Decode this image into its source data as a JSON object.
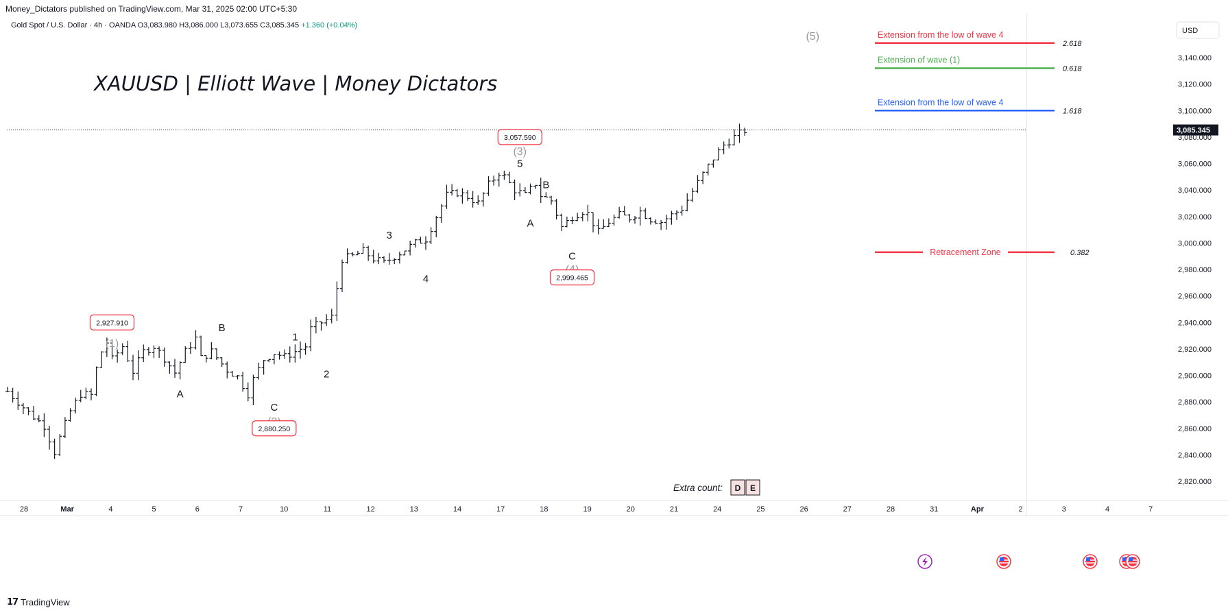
{
  "publish_line": "Money_Dictators published on TradingView.com, Mar 31, 2025 02:00 UTC+5:30",
  "legend": {
    "symbol": "Gold Spot / U.S. Dollar · 4h · OANDA",
    "open": "O3,083.980",
    "high": "H3,086.000",
    "low": "L3,073.655",
    "close": "C3,085.345",
    "change": "+1.360 (+0.04%)"
  },
  "title": "XAUUSD | Elliott Wave | Money Dictators",
  "currency": "USD",
  "last_price": "3,085.345",
  "brand": "TradingView",
  "colors": {
    "red": "#f23645",
    "green": "#4caf50",
    "blue": "#2962ff",
    "candle": "#131722",
    "grid_text": "#131722",
    "wave_grey": "#999999"
  },
  "chart_data": {
    "type": "ohlc",
    "ylim": [
      2810,
      3160
    ],
    "x_ticks": [
      "28",
      "Mar",
      "4",
      "5",
      "6",
      "7",
      "10",
      "11",
      "12",
      "13",
      "14",
      "17",
      "18",
      "19",
      "20",
      "21",
      "24",
      "25",
      "26",
      "27",
      "28",
      "31",
      "Apr",
      "2",
      "3",
      "4",
      "7"
    ],
    "y_ticks": [
      "3,140.000",
      "3,120.000",
      "3,100.000",
      "3,080.000",
      "3,060.000",
      "3,040.000",
      "3,020.000",
      "3,000.000",
      "2,980.000",
      "2,960.000",
      "2,940.000",
      "2,920.000",
      "2,900.000",
      "2,880.000",
      "2,860.000",
      "2,840.000",
      "2,820.000"
    ],
    "y_tick_values": [
      3140,
      3120,
      3100,
      3080,
      3060,
      3040,
      3020,
      3000,
      2980,
      2960,
      2940,
      2920,
      2900,
      2880,
      2860,
      2840,
      2820
    ],
    "price_path": [
      [
        0,
        2888
      ],
      [
        4,
        2872
      ],
      [
        7,
        2862
      ],
      [
        9,
        2842
      ],
      [
        10,
        2853
      ],
      [
        12,
        2873
      ],
      [
        14,
        2886
      ],
      [
        16,
        2885
      ],
      [
        17,
        2905
      ],
      [
        18,
        2918
      ],
      [
        19,
        2925
      ],
      [
        20,
        2912
      ],
      [
        22,
        2922
      ],
      [
        24,
        2903
      ],
      [
        26,
        2918
      ],
      [
        28,
        2922
      ],
      [
        30,
        2913
      ],
      [
        32,
        2902
      ],
      [
        34,
        2918
      ],
      [
        36,
        2928
      ],
      [
        37,
        2913
      ],
      [
        39,
        2918
      ],
      [
        42,
        2904
      ],
      [
        44,
        2899
      ],
      [
        46,
        2886
      ],
      [
        47,
        2897
      ],
      [
        49,
        2912
      ],
      [
        51,
        2917
      ],
      [
        53,
        2914
      ],
      [
        55,
        2918
      ],
      [
        57,
        2922
      ],
      [
        58,
        2935
      ],
      [
        60,
        2940
      ],
      [
        62,
        2944
      ],
      [
        64,
        2988
      ],
      [
        66,
        2990
      ],
      [
        68,
        2994
      ],
      [
        70,
        2988
      ],
      [
        72,
        2985
      ],
      [
        74,
        2990
      ],
      [
        76,
        2995
      ],
      [
        78,
        3000
      ],
      [
        80,
        3003
      ],
      [
        82,
        3020
      ],
      [
        84,
        3036
      ],
      [
        86,
        3038
      ],
      [
        88,
        3035
      ],
      [
        90,
        3030
      ],
      [
        92,
        3044
      ],
      [
        94,
        3053
      ],
      [
        95,
        3050
      ],
      [
        97,
        3040
      ],
      [
        99,
        3036
      ],
      [
        101,
        3045
      ],
      [
        102,
        3036
      ],
      [
        104,
        3032
      ],
      [
        106,
        3012
      ],
      [
        108,
        3020
      ],
      [
        110,
        3024
      ],
      [
        111,
        3022
      ],
      [
        113,
        3008
      ],
      [
        115,
        3016
      ],
      [
        117,
        3021
      ],
      [
        119,
        3019
      ],
      [
        121,
        3024
      ],
      [
        123,
        3018
      ],
      [
        125,
        3016
      ],
      [
        127,
        3021
      ],
      [
        129,
        3026
      ],
      [
        131,
        3039
      ],
      [
        133,
        3052
      ],
      [
        135,
        3064
      ],
      [
        137,
        3074
      ],
      [
        139,
        3080
      ],
      [
        141,
        3085
      ]
    ],
    "wave_labels": [
      {
        "text": "(1)",
        "style": "grey",
        "x": 20,
        "y": 2924
      },
      {
        "text": "A",
        "style": "black",
        "x": 33,
        "y": 2886
      },
      {
        "text": "B",
        "style": "black",
        "x": 41,
        "y": 2936
      },
      {
        "text": "C",
        "style": "black",
        "x": 51,
        "y": 2876
      },
      {
        "text": "(2)",
        "style": "grey",
        "x": 51,
        "y": 2865
      },
      {
        "text": "1",
        "style": "black",
        "x": 55,
        "y": 2929
      },
      {
        "text": "2",
        "style": "black",
        "x": 61,
        "y": 2901
      },
      {
        "text": "3",
        "style": "black",
        "x": 73,
        "y": 3006
      },
      {
        "text": "4",
        "style": "black",
        "x": 80,
        "y": 2973
      },
      {
        "text": "5",
        "style": "black",
        "x": 98,
        "y": 3060
      },
      {
        "text": "(3)",
        "style": "grey",
        "x": 98,
        "y": 3069
      },
      {
        "text": "A",
        "style": "black",
        "x": 100,
        "y": 3015
      },
      {
        "text": "B",
        "style": "black",
        "x": 103,
        "y": 3044
      },
      {
        "text": "C",
        "style": "black",
        "x": 108,
        "y": 2990
      },
      {
        "text": "(4)",
        "style": "grey",
        "x": 108,
        "y": 2980
      },
      {
        "text": "(5)",
        "style": "grey",
        "x": 154,
        "y": 3156
      }
    ],
    "price_boxes": [
      {
        "text": "2,927.910",
        "x": 20,
        "y": 2940
      },
      {
        "text": "2,880.250",
        "x": 51,
        "y": 2860
      },
      {
        "text": "3,057.590",
        "x": 98,
        "y": 3080
      },
      {
        "text": "2,999.465",
        "x": 108,
        "y": 2974
      }
    ],
    "fib_levels": [
      {
        "label": "Extension from the low of wave 4",
        "ratio": "2.618",
        "color": "red",
        "price": 3151
      },
      {
        "label": "Extension of wave (1)",
        "ratio": "0.618",
        "color": "green",
        "price": 3132
      },
      {
        "label": "Extension from the low of wave 4",
        "ratio": "1.618",
        "color": "blue",
        "price": 3100
      },
      {
        "label": "Retracement Zone",
        "ratio": "0.382",
        "color": "red",
        "price": 2993
      }
    ],
    "extra_count": {
      "label": "Extra count:",
      "letters": [
        "D",
        "E"
      ]
    },
    "event_icons": [
      "lightning-icon",
      "us-flag-icon",
      "us-flag-icon",
      "us-flag-icon",
      "us-flag-icon"
    ]
  }
}
